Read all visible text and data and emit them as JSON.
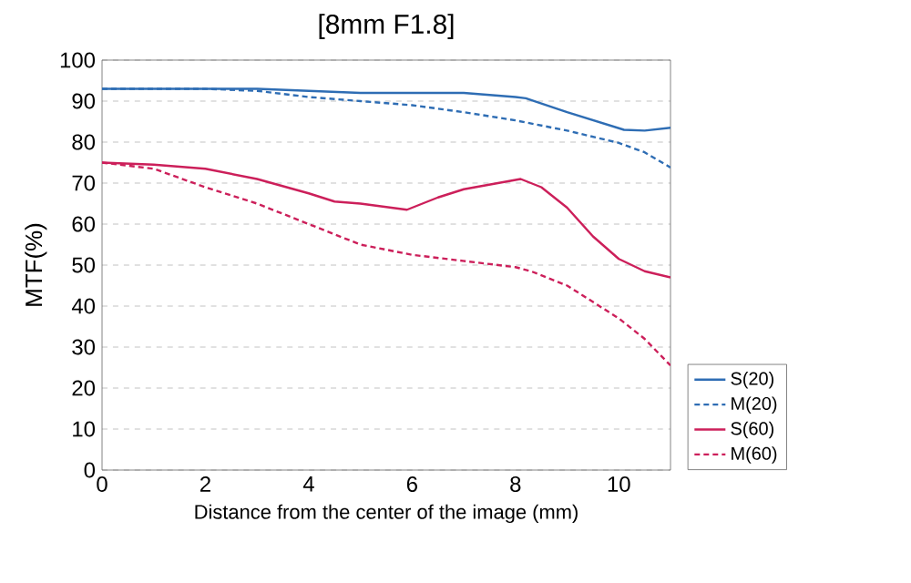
{
  "chart_data": {
    "type": "line",
    "title": "[8mm F1.8]",
    "xlabel": "Distance from the center of the image (mm)",
    "ylabel": "MTF(%)",
    "xlim": [
      0,
      11
    ],
    "ylim": [
      0,
      100
    ],
    "xticks": [
      0,
      2,
      4,
      6,
      8,
      10
    ],
    "yticks": [
      0,
      10,
      20,
      30,
      40,
      50,
      60,
      70,
      80,
      90,
      100
    ],
    "grid": "y",
    "legend": "right",
    "marker": "none",
    "series": [
      {
        "name": "S(20)",
        "color": "#2e6db4",
        "line_style": "solid",
        "x": [
          0,
          1,
          2,
          3,
          4,
          5,
          6,
          7,
          8,
          8.2,
          9,
          10.1,
          10.5,
          11
        ],
        "values": [
          93,
          93,
          93,
          93,
          92.5,
          92,
          92,
          92,
          91,
          90.7,
          87.3,
          83,
          82.8,
          83.5
        ]
      },
      {
        "name": "M(20)",
        "color": "#2e6db4",
        "line_style": "dashed",
        "x": [
          0,
          1,
          2,
          3,
          4,
          5,
          6,
          7,
          8,
          9,
          10,
          10.5,
          11
        ],
        "values": [
          93,
          93,
          93,
          92.5,
          91,
          90,
          89,
          87.3,
          85.3,
          82.8,
          79.8,
          77.5,
          73.8
        ]
      },
      {
        "name": "S(60)",
        "color": "#cc1f5a",
        "line_style": "solid",
        "x": [
          0,
          1,
          2,
          3,
          4,
          4.5,
          5,
          5.9,
          6.5,
          7,
          8.1,
          8.5,
          9,
          9.5,
          10,
          10.5,
          11
        ],
        "values": [
          75,
          74.5,
          73.5,
          71,
          67.5,
          65.5,
          65,
          63.5,
          66.5,
          68.5,
          71,
          69,
          64,
          57,
          51.5,
          48.5,
          47
        ]
      },
      {
        "name": "M(60)",
        "color": "#cc1f5a",
        "line_style": "dashed",
        "x": [
          0,
          1,
          2,
          3,
          4,
          5,
          6,
          7,
          8,
          8.3,
          9,
          10,
          10.5,
          11
        ],
        "values": [
          75,
          73.5,
          69,
          65,
          60,
          55,
          52.5,
          51,
          49.5,
          48.5,
          45,
          37,
          32,
          25.5
        ]
      }
    ]
  }
}
